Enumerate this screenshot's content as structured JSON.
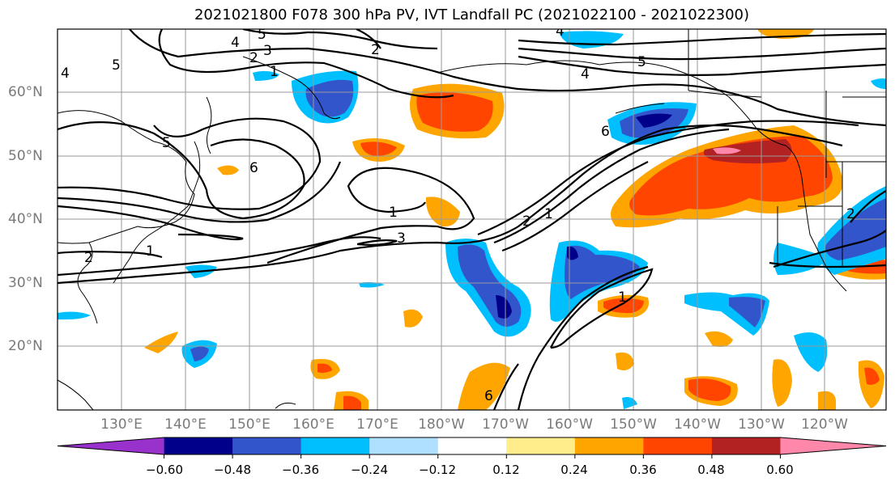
{
  "title": "2021021800 F078 300 hPa PV, IVT Landfall PC (2021022100 - 2021022300)",
  "lat_labels": [
    "60°N",
    "50°N",
    "40°N",
    "30°N",
    "20°N"
  ],
  "lon_labels": [
    "130°E",
    "140°E",
    "150°E",
    "160°E",
    "170°E",
    "180°W",
    "170°W",
    "160°W",
    "150°W",
    "140°W",
    "130°W",
    "120°W"
  ],
  "colorbar": {
    "ticks": [
      "−0.60",
      "−0.48",
      "−0.36",
      "−0.24",
      "−0.12",
      "0.12",
      "0.24",
      "0.36",
      "0.48",
      "0.60"
    ],
    "colors": [
      "#9932cc",
      "#00008b",
      "#3355cc",
      "#00bfff",
      "#b0e0ff",
      "#ffffff",
      "#ffec8b",
      "#ffa500",
      "#ff4500",
      "#b22222",
      "#ff88aa"
    ]
  },
  "contour_labels": [
    "5",
    "4",
    "3",
    "2",
    "1",
    "2",
    "4",
    "5",
    "4",
    "6",
    "5",
    "1",
    "6",
    "5",
    "1",
    "3",
    "2",
    "1",
    "2",
    "2",
    "1",
    "4",
    "6"
  ]
}
